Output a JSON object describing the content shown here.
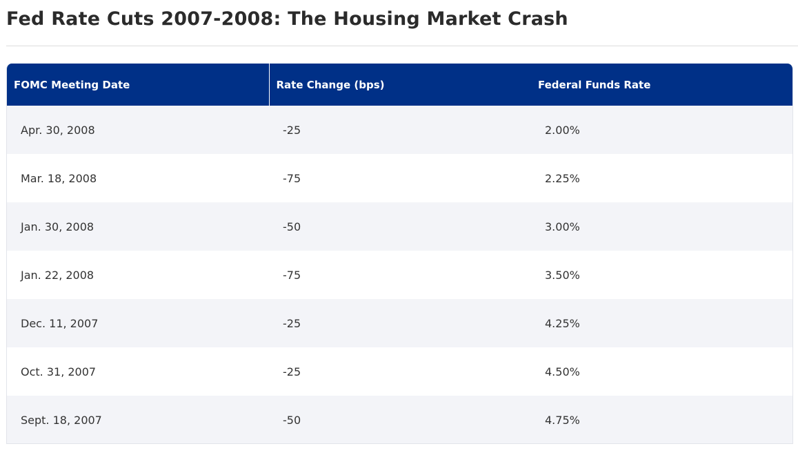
{
  "page": {
    "title": "Fed Rate Cuts 2007-2008: The Housing Market Crash"
  },
  "table": {
    "headers": {
      "date": "FOMC Meeting Date",
      "change": "Rate Change (bps)",
      "rate": "Federal Funds Rate"
    },
    "rows": [
      {
        "date": "Apr. 30, 2008",
        "change": "-25",
        "rate": "2.00%"
      },
      {
        "date": "Mar. 18, 2008",
        "change": "-75",
        "rate": "2.25%"
      },
      {
        "date": "Jan. 30, 2008",
        "change": "-50",
        "rate": "3.00%"
      },
      {
        "date": "Jan. 22, 2008",
        "change": "-75",
        "rate": "3.50%"
      },
      {
        "date": "Dec. 11, 2007",
        "change": "-25",
        "rate": "4.25%"
      },
      {
        "date": "Oct. 31, 2007",
        "change": "-25",
        "rate": "4.50%"
      },
      {
        "date": "Sept. 18, 2007",
        "change": "-50",
        "rate": "4.75%"
      }
    ]
  },
  "colors": {
    "header_bg": "#003087",
    "row_alt_bg": "#f3f4f8",
    "text": "#333333"
  }
}
